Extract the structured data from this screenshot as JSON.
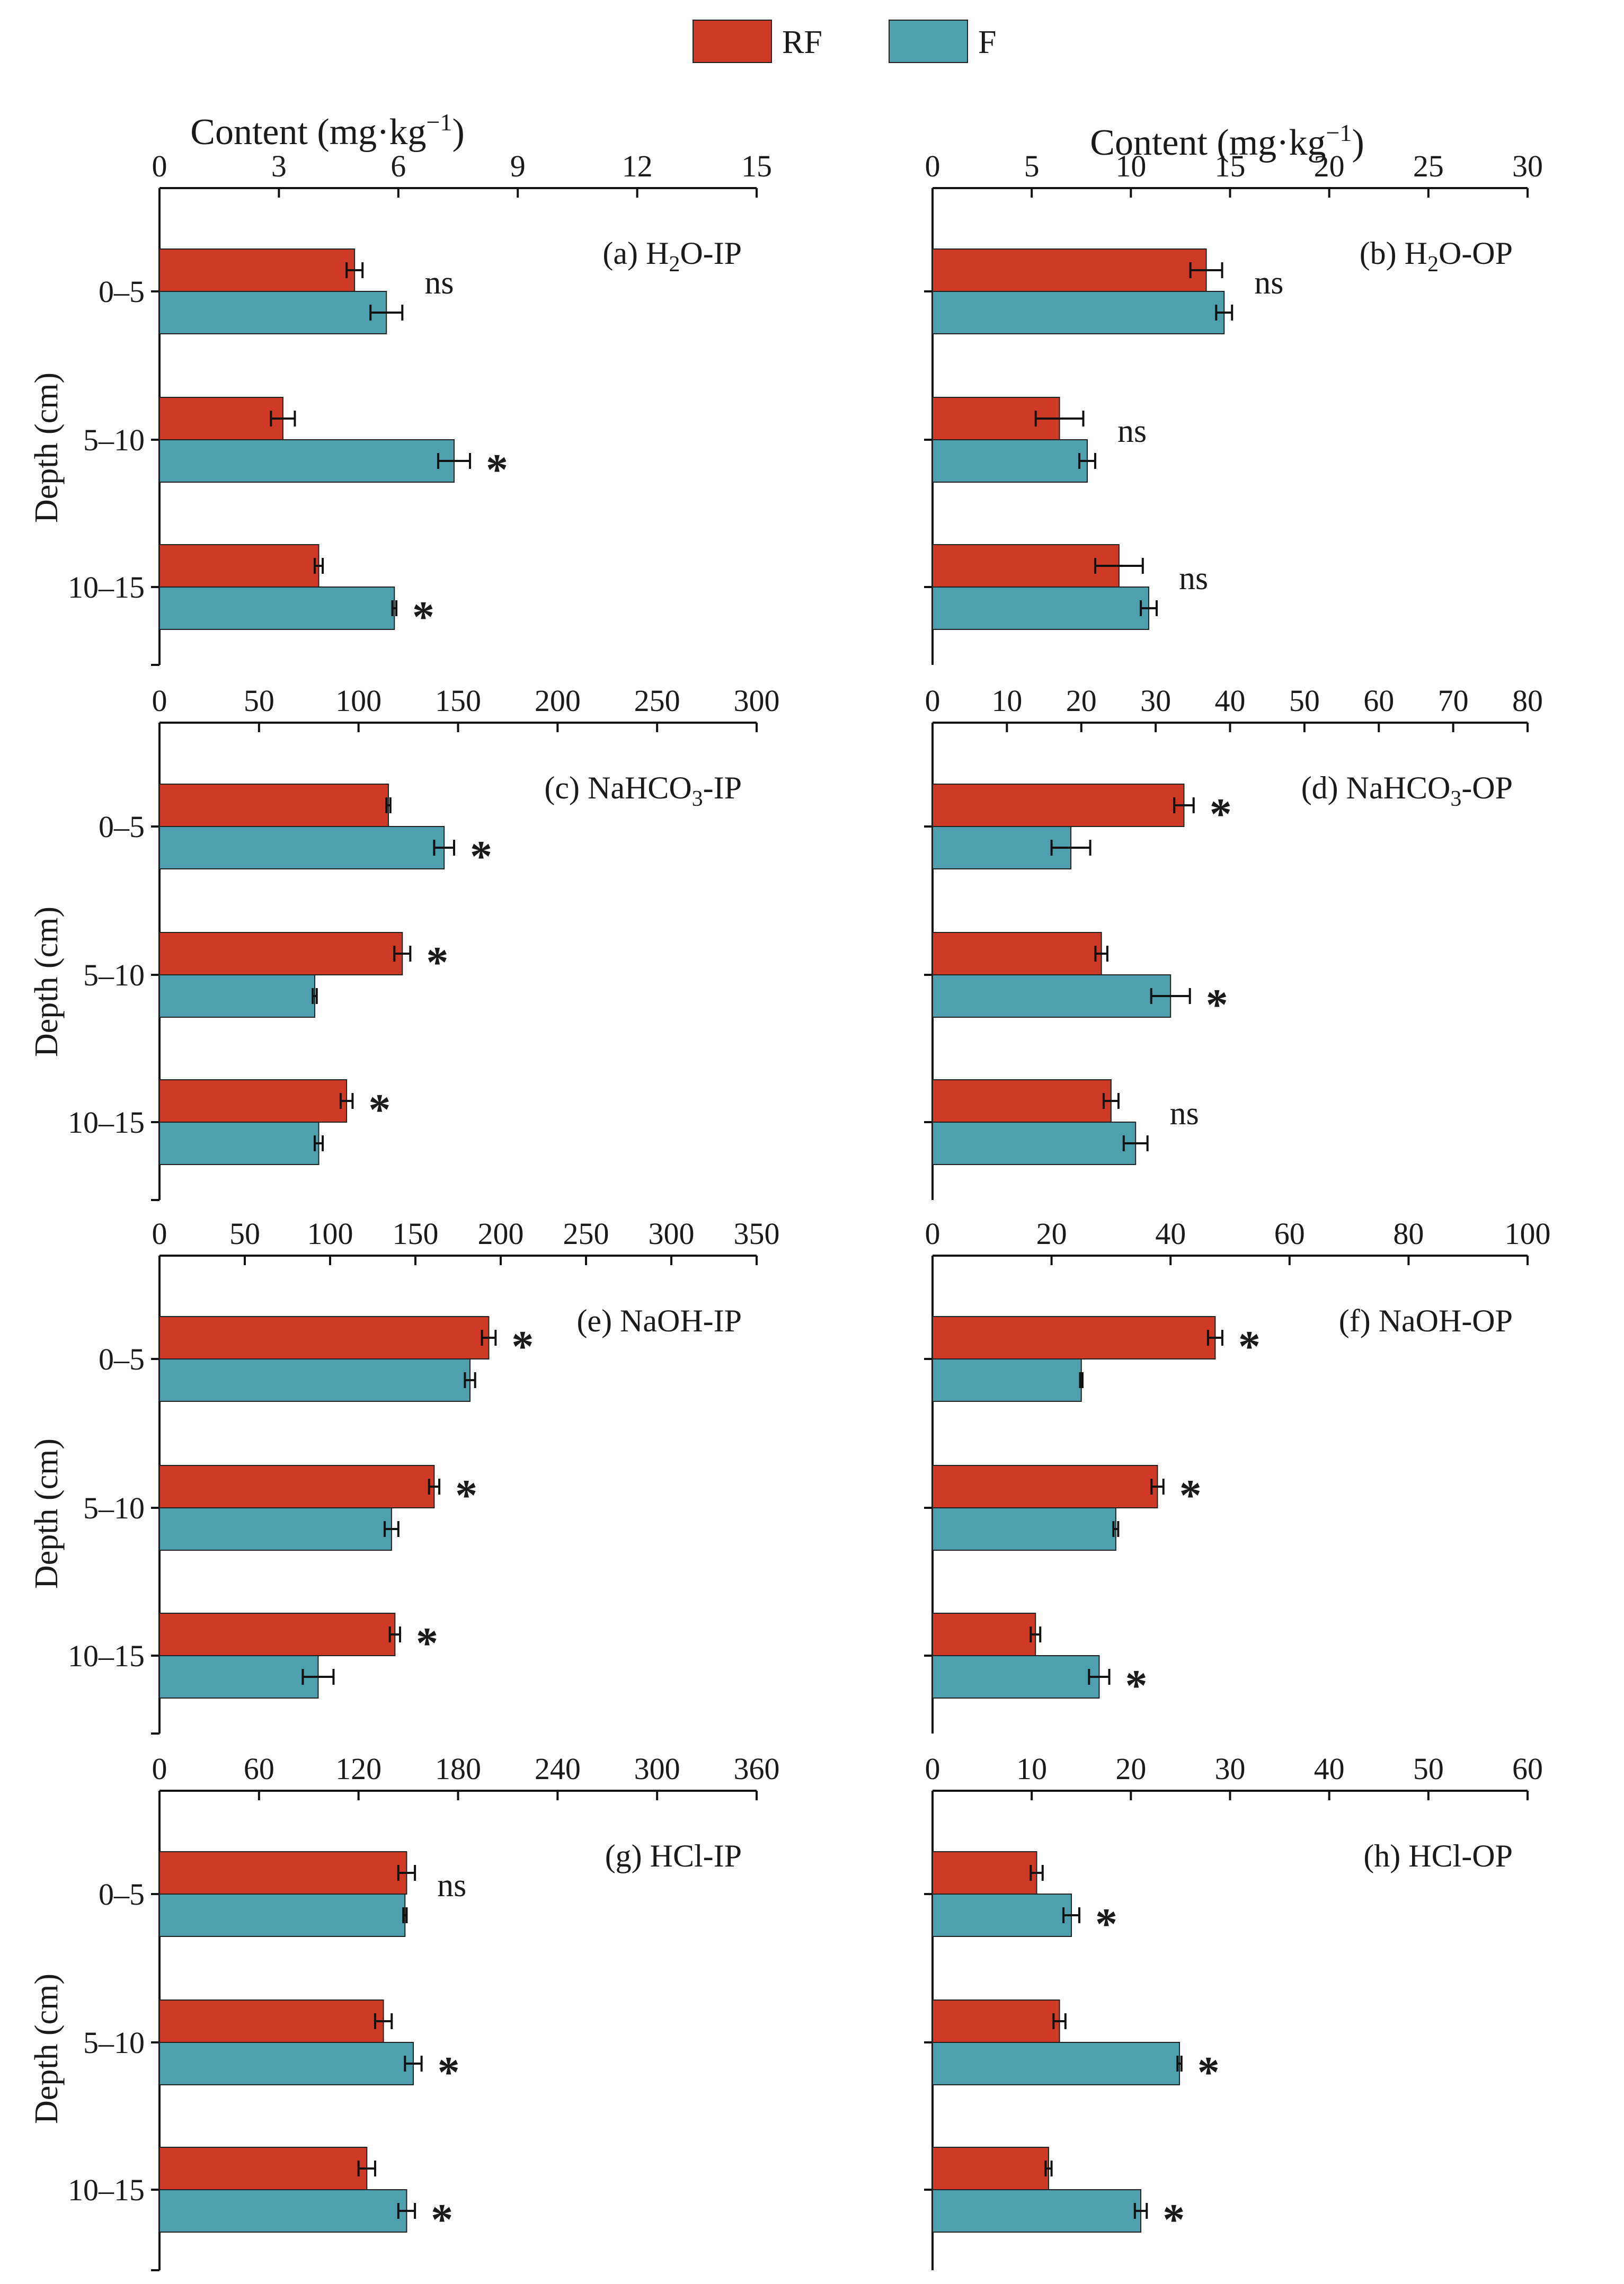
{
  "legend": {
    "rf_label": "RF",
    "f_label": "F",
    "rf_color": "#cf3a27",
    "f_color": "#4ea0ae"
  },
  "axis_text": {
    "x_title_prefix": "Content (",
    "x_title_unit": "mg·kg",
    "x_title_exp": "−1",
    "x_title_suffix": ")",
    "y_title": "Depth (cm)",
    "depths": [
      "0–5",
      "5–10",
      "10–15"
    ]
  },
  "chart_data": [
    {
      "type": "bar",
      "orientation": "horizontal",
      "title_main": "(a) H",
      "title_sub": "2",
      "title_tail": "O-IP",
      "categories": [
        "0–5",
        "5–10",
        "10–15"
      ],
      "xlim": [
        0,
        15
      ],
      "ticks": [
        "0",
        "3",
        "6",
        "9",
        "12",
        "15"
      ],
      "series": [
        {
          "name": "RF",
          "values": [
            4.9,
            3.1,
            4.0
          ],
          "errors": [
            0.2,
            0.3,
            0.1
          ]
        },
        {
          "name": "F",
          "values": [
            5.7,
            7.4,
            5.9
          ],
          "errors": [
            0.4,
            0.4,
            0.05
          ]
        }
      ],
      "significance": [
        "ns",
        "*",
        "*"
      ]
    },
    {
      "type": "bar",
      "orientation": "horizontal",
      "title_main": "(b) H",
      "title_sub": "2",
      "title_tail": "O-OP",
      "categories": [
        "0–5",
        "5–10",
        "10–15"
      ],
      "xlim": [
        0,
        30
      ],
      "ticks": [
        "0",
        "5",
        "10",
        "15",
        "20",
        "25",
        "30"
      ],
      "series": [
        {
          "name": "RF",
          "values": [
            13.8,
            6.4,
            9.4
          ],
          "errors": [
            0.8,
            1.2,
            1.2
          ]
        },
        {
          "name": "F",
          "values": [
            14.7,
            7.8,
            10.9
          ],
          "errors": [
            0.4,
            0.4,
            0.4
          ]
        }
      ],
      "significance": [
        "ns",
        "ns",
        "ns"
      ]
    },
    {
      "type": "bar",
      "orientation": "horizontal",
      "title_main": "(c) NaHCO",
      "title_sub": "3",
      "title_tail": "-IP",
      "categories": [
        "0–5",
        "5–10",
        "10–15"
      ],
      "xlim": [
        0,
        300
      ],
      "ticks": [
        "0",
        "50",
        "100",
        "150",
        "200",
        "250",
        "300"
      ],
      "series": [
        {
          "name": "RF",
          "values": [
            115,
            122,
            94
          ],
          "errors": [
            1,
            4,
            3
          ]
        },
        {
          "name": "F",
          "values": [
            143,
            78,
            80
          ],
          "errors": [
            5,
            1,
            2
          ]
        }
      ],
      "significance": [
        "*",
        "*",
        "*"
      ]
    },
    {
      "type": "bar",
      "orientation": "horizontal",
      "title_main": "(d) NaHCO",
      "title_sub": "3",
      "title_tail": "-OP",
      "categories": [
        "0–5",
        "5–10",
        "10–15"
      ],
      "xlim": [
        0,
        80
      ],
      "ticks": [
        "0",
        "10",
        "20",
        "30",
        "40",
        "50",
        "60",
        "70",
        "80"
      ],
      "series": [
        {
          "name": "RF",
          "values": [
            33.8,
            22.7,
            24.0
          ],
          "errors": [
            1.3,
            0.8,
            1.0
          ]
        },
        {
          "name": "F",
          "values": [
            18.6,
            32.0,
            27.3
          ],
          "errors": [
            2.6,
            2.6,
            1.6
          ]
        }
      ],
      "significance": [
        "*",
        "*",
        "ns"
      ]
    },
    {
      "type": "bar",
      "orientation": "horizontal",
      "title_main": "(e) NaOH-IP",
      "title_sub": "",
      "title_tail": "",
      "categories": [
        "0–5",
        "5–10",
        "10–15"
      ],
      "xlim": [
        0,
        350
      ],
      "ticks": [
        "0",
        "50",
        "100",
        "150",
        "200",
        "250",
        "300",
        "350"
      ],
      "series": [
        {
          "name": "RF",
          "values": [
            193,
            161,
            138
          ],
          "errors": [
            4,
            3,
            3
          ]
        },
        {
          "name": "F",
          "values": [
            182,
            136,
            93
          ],
          "errors": [
            3,
            4,
            9
          ]
        }
      ],
      "significance": [
        "*",
        "*",
        "*"
      ]
    },
    {
      "type": "bar",
      "orientation": "horizontal",
      "title_main": "(f) NaOH-OP",
      "title_sub": "",
      "title_tail": "",
      "categories": [
        "0–5",
        "5–10",
        "10–15"
      ],
      "xlim": [
        0,
        100
      ],
      "ticks": [
        "0",
        "20",
        "40",
        "60",
        "80",
        "100"
      ],
      "series": [
        {
          "name": "RF",
          "values": [
            47.5,
            37.8,
            17.3
          ],
          "errors": [
            1.2,
            1.0,
            0.8
          ]
        },
        {
          "name": "F",
          "values": [
            25.0,
            30.8,
            28.0
          ],
          "errors": [
            0.2,
            0.4,
            1.7
          ]
        }
      ],
      "significance": [
        "*",
        "*",
        "*"
      ]
    },
    {
      "type": "bar",
      "orientation": "horizontal",
      "title_main": "(g) HCl-IP",
      "title_sub": "",
      "title_tail": "",
      "categories": [
        "0–5",
        "5–10",
        "10–15"
      ],
      "xlim": [
        0,
        360
      ],
      "ticks": [
        "0",
        "60",
        "120",
        "180",
        "240",
        "300",
        "360"
      ],
      "series": [
        {
          "name": "RF",
          "values": [
            149,
            135,
            125
          ],
          "errors": [
            5,
            5,
            5
          ]
        },
        {
          "name": "F",
          "values": [
            148,
            153,
            149
          ],
          "errors": [
            1,
            5,
            5
          ]
        }
      ],
      "significance": [
        "ns",
        "*",
        "*"
      ]
    },
    {
      "type": "bar",
      "orientation": "horizontal",
      "title_main": "(h) HCl-OP",
      "title_sub": "",
      "title_tail": "",
      "categories": [
        "0–5",
        "5–10",
        "10–15"
      ],
      "xlim": [
        0,
        60
      ],
      "ticks": [
        "0",
        "10",
        "20",
        "30",
        "40",
        "50",
        "60"
      ],
      "series": [
        {
          "name": "RF",
          "values": [
            10.5,
            12.8,
            11.7
          ],
          "errors": [
            0.6,
            0.6,
            0.3
          ]
        },
        {
          "name": "F",
          "values": [
            14.0,
            24.9,
            21.0
          ],
          "errors": [
            0.8,
            0.2,
            0.6
          ]
        }
      ],
      "significance": [
        "*",
        "*",
        "*"
      ]
    }
  ]
}
